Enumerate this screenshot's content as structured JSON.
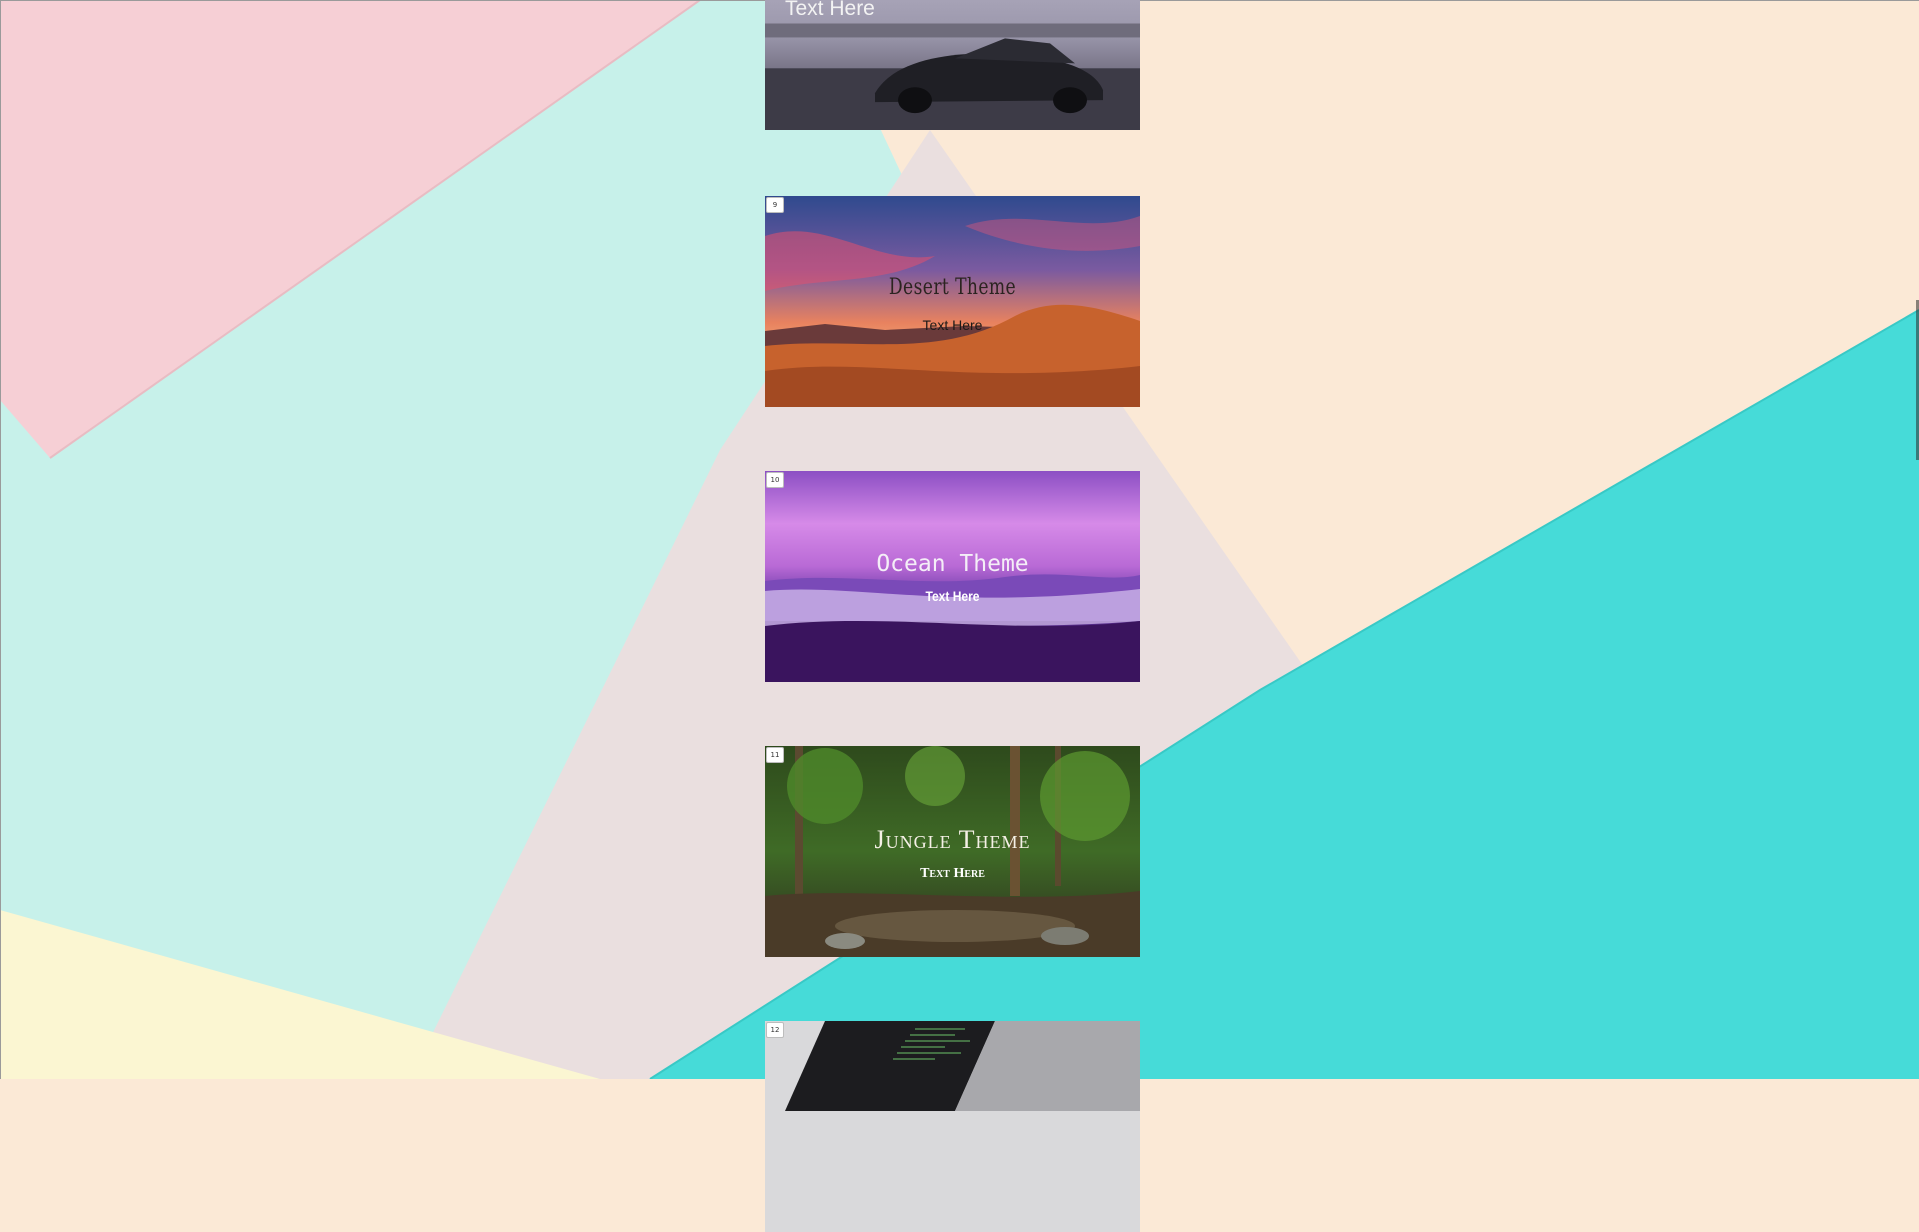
{
  "page": {
    "background": "pastel-paper-background"
  },
  "slides": [
    {
      "id": "car",
      "number": "",
      "title": "",
      "subtitle": "Text Here",
      "image": "sports-car-image"
    },
    {
      "id": "desert",
      "number": "9",
      "title": "Desert Theme",
      "subtitle": "Text Here",
      "image": "desert-sunset-image"
    },
    {
      "id": "ocean",
      "number": "10",
      "title": "Ocean Theme",
      "subtitle": "Text Here",
      "image": "ocean-beach-image"
    },
    {
      "id": "jungle",
      "number": "11",
      "title": "Jungle Theme",
      "subtitle": "Text Here",
      "image": "jungle-stream-image"
    },
    {
      "id": "laptop",
      "number": "12",
      "title": "",
      "subtitle": "",
      "image": "laptop-code-image"
    }
  ],
  "colors": {
    "paper_pink": "#f7d0d6",
    "paper_mint": "#c7f1ea",
    "paper_peach": "#fbe9d6",
    "paper_gray": "#eadfdf",
    "paper_turquoise": "#45dcd9",
    "paper_yellow": "#fbf6d2"
  }
}
